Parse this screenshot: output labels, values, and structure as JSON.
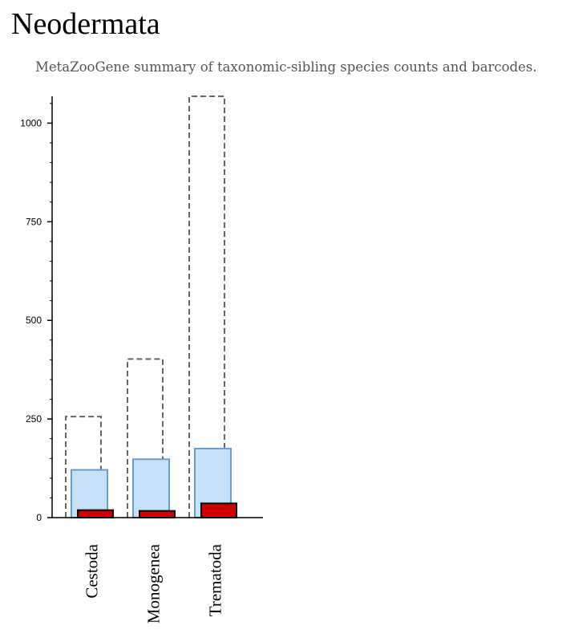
{
  "header": {
    "title": "Neodermata",
    "subtitle": "MetaZooGene summary of taxonomic-sibling species counts and barcodes."
  },
  "colors": {
    "outline_bar_stroke": "#666666",
    "species_fill": "#c6e0f8",
    "species_stroke": "#6a9ccd",
    "barcode_fill": "#cc0000",
    "barcode_stroke": "#000000",
    "axis": "#000000"
  },
  "chart_data": {
    "type": "bar",
    "categories": [
      "Cestoda",
      "Monogenea",
      "Trematoda"
    ],
    "series": [
      {
        "values": [
          256,
          402,
          1068
        ]
      },
      {
        "values": [
          121,
          148,
          175
        ]
      },
      {
        "values": [
          19,
          17,
          36
        ]
      }
    ],
    "yticks": [
      0,
      250,
      500,
      750,
      1000
    ],
    "ylim": [
      0,
      1068
    ],
    "grid": false
  }
}
